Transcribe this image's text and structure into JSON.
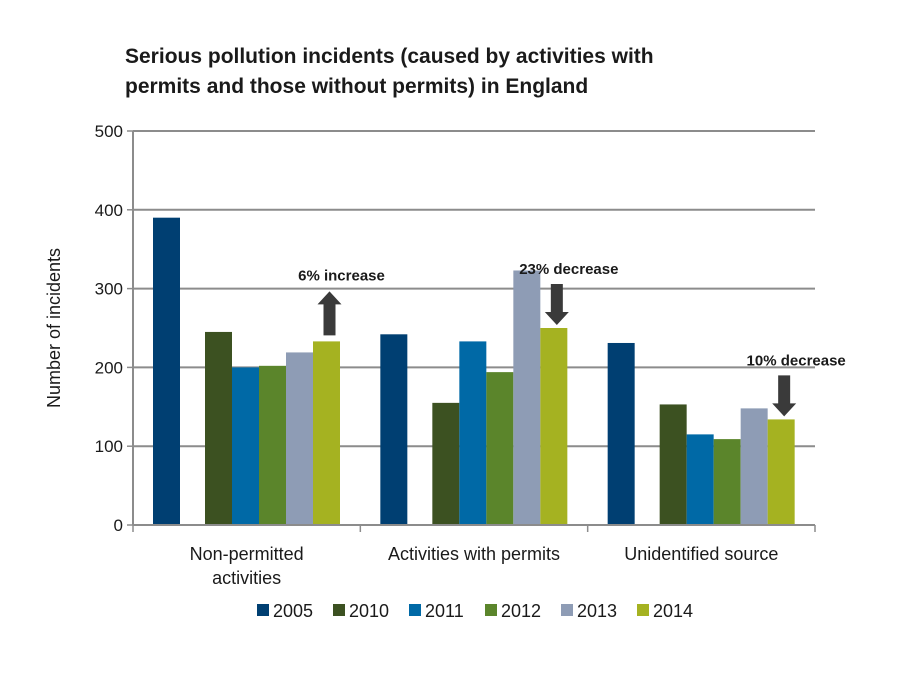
{
  "chart_data": {
    "type": "bar",
    "title_lines": [
      "Serious pollution incidents (caused by activities with",
      "permits and those without permits) in England"
    ],
    "ylabel": "Number of incidents",
    "ylim": [
      0,
      500
    ],
    "yticks": [
      0,
      100,
      200,
      300,
      400,
      500
    ],
    "grid": true,
    "legend_position": "bottom",
    "categories": [
      [
        "Non-permitted",
        "activities"
      ],
      [
        "Activities with permits"
      ],
      [
        "Unidentified source"
      ]
    ],
    "series": [
      {
        "name": "2005",
        "color": "#003f72",
        "values": [
          390,
          242,
          231
        ]
      },
      {
        "name": "2010",
        "color": "#3c5121",
        "values": [
          245,
          155,
          153
        ]
      },
      {
        "name": "2011",
        "color": "#0069a6",
        "values": [
          200,
          233,
          115
        ]
      },
      {
        "name": "2012",
        "color": "#5b852b",
        "values": [
          202,
          194,
          109
        ]
      },
      {
        "name": "2013",
        "color": "#8e9cb5",
        "values": [
          219,
          323,
          148
        ]
      },
      {
        "name": "2014",
        "color": "#a5b221",
        "values": [
          233,
          250,
          134
        ]
      }
    ],
    "annotations": [
      {
        "text": "6% increase",
        "category_index": 0,
        "direction": "up"
      },
      {
        "text": "23% decrease",
        "category_index": 1,
        "direction": "down"
      },
      {
        "text": "10% decrease",
        "category_index": 2,
        "direction": "down"
      }
    ],
    "arrow_color": "#3a3a3a"
  }
}
